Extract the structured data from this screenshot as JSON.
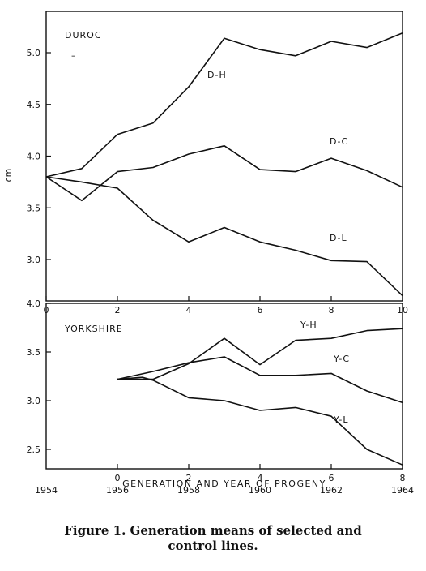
{
  "caption": {
    "line1": "Figure 1. Generation means of selected and",
    "line2": "control lines."
  },
  "chart_data": [
    {
      "type": "line",
      "title": "DUROC",
      "marker": "–",
      "ylabel": "cm",
      "xlim": [
        0,
        10
      ],
      "ylim": [
        2.6,
        5.4
      ],
      "xticks": [
        0,
        2,
        4,
        6,
        8,
        10
      ],
      "xtick_labels": [
        "0",
        "2",
        "4",
        "6",
        "8",
        "10"
      ],
      "yticks": [
        3.0,
        3.5,
        4.0,
        4.5,
        5.0
      ],
      "ytick_labels": [
        "3.0",
        "3.5",
        "4.0",
        "4.5",
        "5.0"
      ],
      "series": [
        {
          "name": "D-H",
          "x": [
            0,
            1,
            2,
            3,
            4,
            5,
            6,
            7,
            8,
            9,
            10
          ],
          "y": [
            3.8,
            3.88,
            4.21,
            4.32,
            4.67,
            5.14,
            5.03,
            4.97,
            5.11,
            5.05,
            5.19
          ]
        },
        {
          "name": "D-C",
          "x": [
            0,
            1,
            2,
            3,
            4,
            5,
            6,
            7,
            8,
            9,
            10
          ],
          "y": [
            3.8,
            3.57,
            3.85,
            3.89,
            4.02,
            4.1,
            3.87,
            3.85,
            3.98,
            3.86,
            3.7
          ]
        },
        {
          "name": "D-L",
          "x": [
            0,
            1,
            2,
            3,
            4,
            5,
            6,
            7,
            8,
            9,
            10
          ],
          "y": [
            3.8,
            3.75,
            3.69,
            3.38,
            3.17,
            3.31,
            3.17,
            3.09,
            2.99,
            2.98,
            2.65
          ]
        }
      ]
    },
    {
      "type": "line",
      "title": "YORKSHIRE",
      "xlabel": "GENERATION AND YEAR OF PROGENY",
      "xlim": [
        -2,
        8
      ],
      "ylim": [
        2.3,
        4.0
      ],
      "xticks": [
        0,
        2,
        4,
        6,
        8
      ],
      "xtick_labels": [
        "0",
        "2",
        "4",
        "6",
        "8"
      ],
      "year_ticks": [
        -2,
        0,
        2,
        4,
        6,
        8
      ],
      "year_labels": [
        "1954",
        "1956",
        "1958",
        "1960",
        "1962",
        "1964"
      ],
      "yticks": [
        2.5,
        3.0,
        3.5,
        4.0
      ],
      "ytick_labels": [
        "2.5",
        "3.0",
        "3.5",
        "4.0"
      ],
      "series": [
        {
          "name": "Y-H",
          "x": [
            0,
            1,
            2,
            3,
            4,
            5,
            6,
            7,
            8
          ],
          "y": [
            3.22,
            3.22,
            3.38,
            3.64,
            3.37,
            3.62,
            3.64,
            3.72,
            3.74
          ]
        },
        {
          "name": "Y-C",
          "x": [
            0,
            1,
            2,
            3,
            4,
            5,
            6,
            7,
            8
          ],
          "y": [
            3.22,
            3.3,
            3.39,
            3.45,
            3.26,
            3.26,
            3.28,
            3.1,
            2.98
          ]
        },
        {
          "name": "Y-L",
          "x": [
            0,
            0.7,
            1,
            2,
            3,
            4,
            5,
            6,
            7,
            8
          ],
          "y": [
            3.22,
            3.24,
            3.21,
            3.03,
            3.0,
            2.9,
            2.93,
            2.84,
            2.5,
            2.34
          ]
        }
      ]
    }
  ]
}
